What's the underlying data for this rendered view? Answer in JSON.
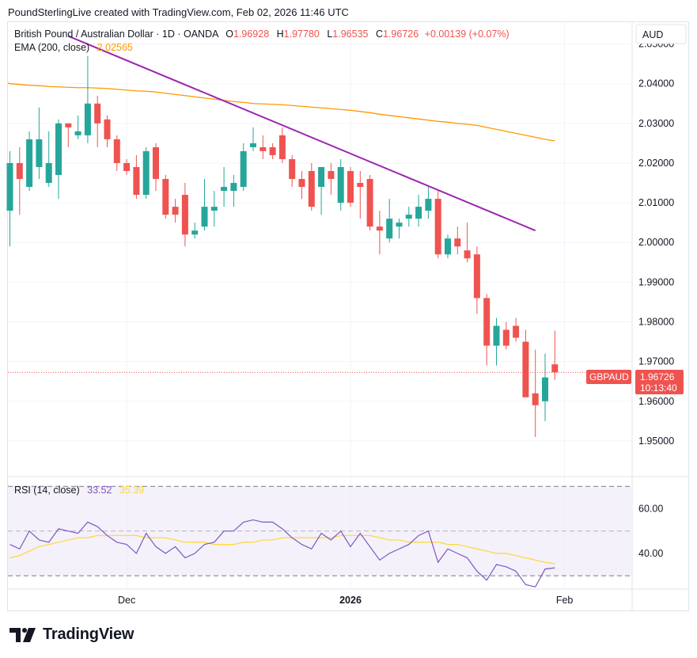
{
  "header": {
    "credit": "PoundSterlingLive created with TradingView.com, Feb 02, 2026 11:46 UTC"
  },
  "legend": {
    "symbol": "British Pound / Australian Dollar · 1D · OANDA",
    "o_label": "O",
    "o_value": "1.96928",
    "h_label": "H",
    "h_value": "1.97780",
    "l_label": "L",
    "l_value": "1.96535",
    "c_label": "C",
    "c_value": "1.96726",
    "change": "+0.00139 (+0.07%)",
    "ema_label": "EMA (200, close)",
    "ema_value": "2.02565",
    "rsi_label": "RSI (14, close)",
    "rsi_value": "33.52",
    "rsi_ma_value": "35.39"
  },
  "currency": "AUD",
  "price_tag": {
    "symbol": "GBPAUD",
    "price": "1.96726",
    "countdown": "10:13:40"
  },
  "footer": {
    "brand": "TradingView"
  },
  "colors": {
    "up": "#26a69a",
    "down": "#ef5350",
    "ema": "#ff9800",
    "trendline": "#9c27b0",
    "rsi": "#7e57c2",
    "rsi_ma": "#fdd835",
    "rsi_band": "#ede7f6",
    "grid": "#f0f3fa",
    "text": "#131722"
  },
  "chart_data": [
    {
      "type": "candlestick",
      "title": "British Pound / Australian Dollar · 1D · OANDA",
      "y_axis_ticks": [
        "2.05000",
        "2.04000",
        "2.03000",
        "2.02000",
        "2.01000",
        "2.00000",
        "1.99000",
        "1.98000",
        "1.97000",
        "1.96000",
        "1.95000"
      ],
      "ylim": [
        1.941,
        2.0555
      ],
      "x_tick_labels": [
        {
          "label": "Dec",
          "index": 12
        },
        {
          "label": "2026",
          "index": 35
        },
        {
          "label": "Feb",
          "index": 57
        }
      ],
      "series": [
        {
          "name": "GBPAUD",
          "ohlc": [
            [
              2.008,
              2.023,
              1.999,
              2.02
            ],
            [
              2.02,
              2.024,
              2.007,
              2.016
            ],
            [
              2.014,
              2.028,
              2.013,
              2.026
            ],
            [
              2.019,
              2.034,
              2.016,
              2.026
            ],
            [
              2.015,
              2.028,
              2.014,
              2.02
            ],
            [
              2.017,
              2.031,
              2.011,
              2.03
            ],
            [
              2.03,
              2.03,
              2.024,
              2.029
            ],
            [
              2.027,
              2.032,
              2.026,
              2.028
            ],
            [
              2.027,
              2.047,
              2.025,
              2.035
            ],
            [
              2.035,
              2.037,
              2.024,
              2.03
            ],
            [
              2.031,
              2.032,
              2.024,
              2.026
            ],
            [
              2.026,
              2.027,
              2.018,
              2.02
            ],
            [
              2.02,
              2.021,
              2.017,
              2.018
            ],
            [
              2.019,
              2.022,
              2.011,
              2.012
            ],
            [
              2.012,
              2.024,
              2.011,
              2.023
            ],
            [
              2.024,
              2.025,
              2.013,
              2.016
            ],
            [
              2.016,
              2.017,
              2.006,
              2.007
            ],
            [
              2.009,
              2.011,
              2.005,
              2.007
            ],
            [
              2.012,
              2.015,
              1.999,
              2.002
            ],
            [
              2.002,
              2.005,
              2.001,
              2.003
            ],
            [
              2.004,
              2.016,
              2.003,
              2.009
            ],
            [
              2.008,
              2.013,
              2.004,
              2.009
            ],
            [
              2.013,
              2.019,
              2.009,
              2.014
            ],
            [
              2.013,
              2.017,
              2.009,
              2.015
            ],
            [
              2.014,
              2.025,
              2.013,
              2.023
            ],
            [
              2.024,
              2.029,
              2.023,
              2.025
            ],
            [
              2.024,
              2.027,
              2.021,
              2.023
            ],
            [
              2.024,
              2.025,
              2.021,
              2.022
            ],
            [
              2.027,
              2.029,
              2.02,
              2.021
            ],
            [
              2.021,
              2.022,
              2.014,
              2.016
            ],
            [
              2.016,
              2.018,
              2.011,
              2.014
            ],
            [
              2.018,
              2.02,
              2.008,
              2.009
            ],
            [
              2.014,
              2.019,
              2.007,
              2.019
            ],
            [
              2.018,
              2.02,
              2.012,
              2.016
            ],
            [
              2.01,
              2.021,
              2.008,
              2.019
            ],
            [
              2.018,
              2.019,
              2.009,
              2.01
            ],
            [
              2.015,
              2.018,
              2.006,
              2.014
            ],
            [
              2.016,
              2.017,
              2.003,
              2.004
            ],
            [
              2.004,
              2.008,
              1.997,
              2.003
            ],
            [
              2.001,
              2.011,
              2.0,
              2.006
            ],
            [
              2.004,
              2.006,
              2.001,
              2.005
            ],
            [
              2.006,
              2.009,
              2.004,
              2.007
            ],
            [
              2.006,
              2.012,
              2.004,
              2.009
            ],
            [
              2.008,
              2.014,
              2.006,
              2.011
            ],
            [
              2.011,
              2.013,
              1.996,
              1.997
            ],
            [
              1.997,
              2.002,
              1.996,
              2.001
            ],
            [
              2.001,
              2.004,
              1.997,
              1.999
            ],
            [
              1.998,
              2.005,
              1.995,
              1.996
            ],
            [
              1.997,
              1.999,
              1.982,
              1.986
            ],
            [
              1.986,
              1.987,
              1.969,
              1.974
            ],
            [
              1.974,
              1.981,
              1.969,
              1.979
            ],
            [
              1.978,
              1.98,
              1.973,
              1.974
            ],
            [
              1.979,
              1.981,
              1.975,
              1.976
            ],
            [
              1.975,
              1.978,
              1.962,
              1.961
            ],
            [
              1.962,
              1.973,
              1.951,
              1.959
            ],
            [
              1.96,
              1.972,
              1.955,
              1.966
            ],
            [
              1.9693,
              1.9778,
              1.9654,
              1.9673
            ]
          ]
        },
        {
          "name": "EMA (200, close)",
          "values": [
            2.04,
            2.0398,
            2.0396,
            2.0395,
            2.0393,
            2.0392,
            2.0391,
            2.039,
            2.039,
            2.0389,
            2.0388,
            2.0386,
            2.0384,
            2.0382,
            2.0381,
            2.0379,
            2.0376,
            2.0373,
            2.037,
            2.0367,
            2.0364,
            2.0361,
            2.0358,
            2.0355,
            2.0353,
            2.035,
            2.0349,
            2.0348,
            2.0347,
            2.0345,
            2.0343,
            2.0341,
            2.0339,
            2.0337,
            2.0335,
            2.0333,
            2.033,
            2.0327,
            2.0323,
            2.032,
            2.0317,
            2.0314,
            2.0311,
            2.0308,
            2.0305,
            2.0303,
            2.03,
            2.0298,
            2.0295,
            2.029,
            2.0285,
            2.028,
            2.0275,
            2.027,
            2.0265,
            2.026,
            2.0256
          ]
        }
      ],
      "trendline": {
        "label": "",
        "from": {
          "index": 6,
          "value": 2.052
        },
        "to": {
          "index": 54,
          "value": 2.003
        }
      },
      "current_price": 1.96726
    },
    {
      "type": "line",
      "title": "RSI (14, close)",
      "y_axis_ticks": [
        "60.00",
        "40.00"
      ],
      "ylim": [
        24,
        74
      ],
      "bands": [
        70,
        50,
        30
      ],
      "series": [
        {
          "name": "RSI",
          "values": [
            44,
            42,
            50,
            46,
            45,
            51,
            50,
            49,
            54,
            52,
            48,
            45,
            44,
            40,
            49,
            43,
            40,
            43,
            38,
            40,
            44,
            45,
            50,
            50,
            54,
            55,
            54,
            54,
            51,
            47,
            44,
            42,
            49,
            46,
            50,
            43,
            49,
            43,
            37,
            40,
            42,
            44,
            48,
            50,
            36,
            42,
            40,
            38,
            32,
            28,
            35,
            34,
            32,
            26,
            25,
            33,
            33.52
          ]
        },
        {
          "name": "RSI MA",
          "values": [
            38,
            39,
            41,
            43,
            44,
            45,
            46,
            47,
            47,
            48,
            48,
            48,
            48,
            48,
            47,
            47,
            47,
            46,
            45,
            45,
            45,
            44,
            44,
            44,
            45,
            45,
            46,
            46,
            47,
            47,
            47,
            47,
            47,
            47,
            48,
            48,
            48,
            48,
            47,
            46,
            46,
            45,
            45,
            45,
            45,
            44,
            44,
            43,
            42,
            41,
            40,
            40,
            39,
            38,
            37,
            36,
            35.39
          ]
        }
      ]
    }
  ]
}
